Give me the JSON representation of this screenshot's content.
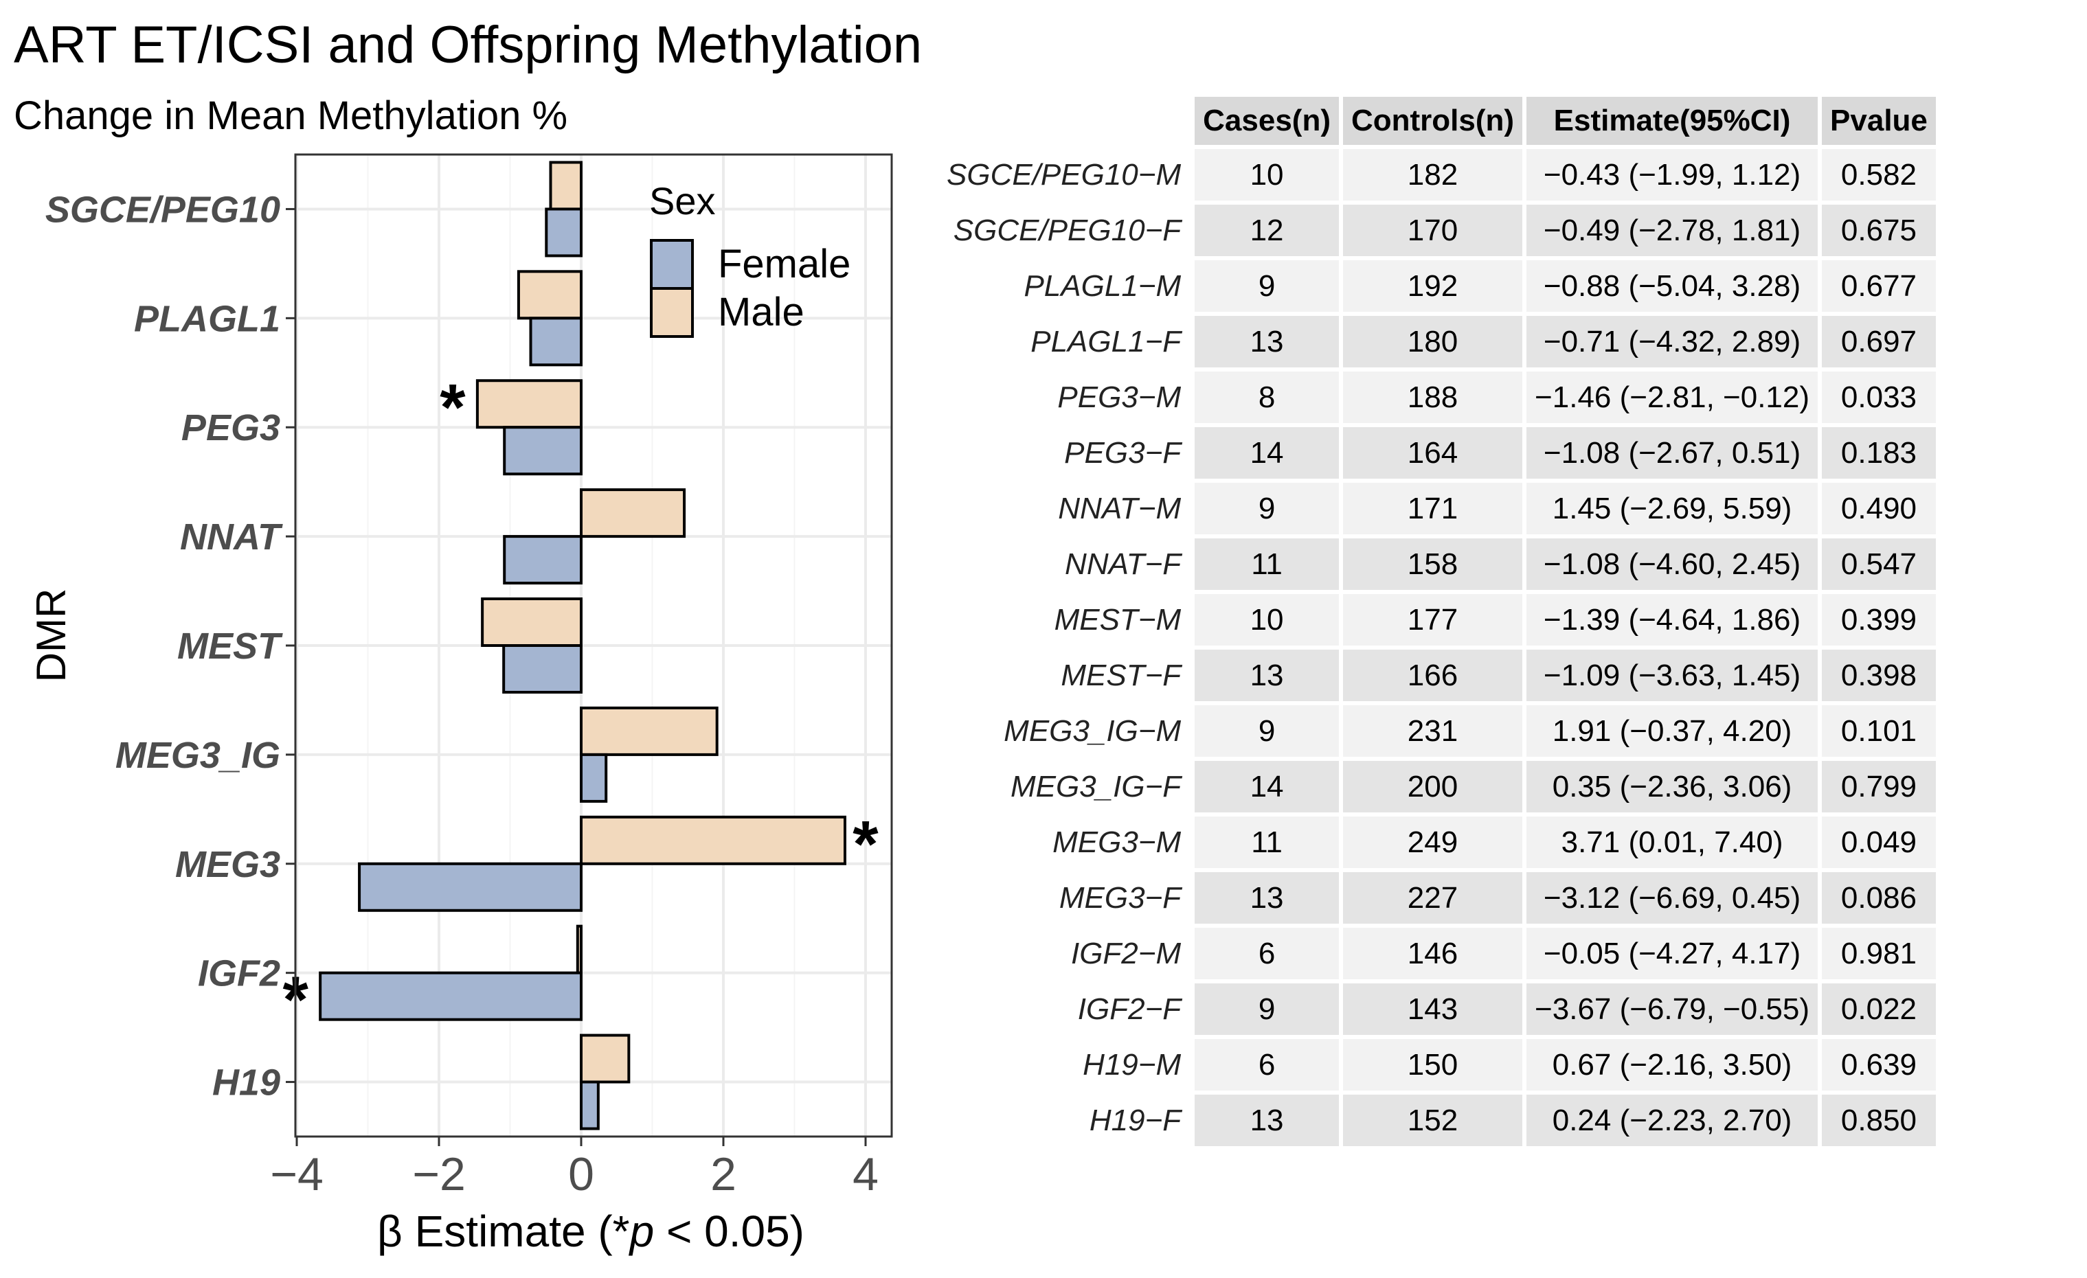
{
  "header": {
    "title": "ART ET/ICSI and Offspring Methylation",
    "subtitle": "Change in Mean Methylation %"
  },
  "chart_data": {
    "type": "bar",
    "orientation": "horizontal",
    "ylabel": "DMR",
    "xlabel_prefix": "β Estimate (*",
    "xlabel_p": "p",
    "xlabel_suffix": " < 0.05)",
    "xlim": [
      -4,
      4
    ],
    "xticks": [
      "−4",
      "−2",
      "0",
      "2",
      "4"
    ],
    "categories": [
      "SGCE/PEG10",
      "PLAGL1",
      "PEG3",
      "NNAT",
      "MEST",
      "MEG3_IG",
      "MEG3",
      "IGF2",
      "H19"
    ],
    "legend": {
      "title": "Sex",
      "position": "top-right"
    },
    "significance_marker": "*",
    "series": [
      {
        "name": "Male",
        "color": "#f2d9bd",
        "values": [
          -0.43,
          -0.88,
          -1.46,
          1.45,
          -1.39,
          1.91,
          3.71,
          -0.05,
          0.67
        ],
        "significant": [
          false,
          false,
          true,
          false,
          false,
          false,
          true,
          false,
          false
        ]
      },
      {
        "name": "Female",
        "color": "#a4b5d1",
        "values": [
          -0.49,
          -0.71,
          -1.08,
          -1.08,
          -1.09,
          0.35,
          -3.12,
          -3.67,
          0.24
        ],
        "significant": [
          false,
          false,
          false,
          false,
          false,
          false,
          false,
          true,
          false
        ]
      }
    ]
  },
  "table": {
    "columns": [
      "Cases(n)",
      "Controls(n)",
      "Estimate(95%CI)",
      "Pvalue"
    ],
    "rows": [
      {
        "label": "SGCE/PEG10−M",
        "cases": "10",
        "controls": "182",
        "estimate": "−0.43 (−1.99, 1.12)",
        "pvalue": "0.582"
      },
      {
        "label": "SGCE/PEG10−F",
        "cases": "12",
        "controls": "170",
        "estimate": "−0.49 (−2.78, 1.81)",
        "pvalue": "0.675"
      },
      {
        "label": "PLAGL1−M",
        "cases": "9",
        "controls": "192",
        "estimate": "−0.88 (−5.04, 3.28)",
        "pvalue": "0.677"
      },
      {
        "label": "PLAGL1−F",
        "cases": "13",
        "controls": "180",
        "estimate": "−0.71 (−4.32, 2.89)",
        "pvalue": "0.697"
      },
      {
        "label": "PEG3−M",
        "cases": "8",
        "controls": "188",
        "estimate": "−1.46 (−2.81, −0.12)",
        "pvalue": "0.033"
      },
      {
        "label": "PEG3−F",
        "cases": "14",
        "controls": "164",
        "estimate": "−1.08 (−2.67, 0.51)",
        "pvalue": "0.183"
      },
      {
        "label": "NNAT−M",
        "cases": "9",
        "controls": "171",
        "estimate": "1.45 (−2.69, 5.59)",
        "pvalue": "0.490"
      },
      {
        "label": "NNAT−F",
        "cases": "11",
        "controls": "158",
        "estimate": "−1.08 (−4.60, 2.45)",
        "pvalue": "0.547"
      },
      {
        "label": "MEST−M",
        "cases": "10",
        "controls": "177",
        "estimate": "−1.39 (−4.64, 1.86)",
        "pvalue": "0.399"
      },
      {
        "label": "MEST−F",
        "cases": "13",
        "controls": "166",
        "estimate": "−1.09 (−3.63, 1.45)",
        "pvalue": "0.398"
      },
      {
        "label": "MEG3_IG−M",
        "cases": "9",
        "controls": "231",
        "estimate": "1.91 (−0.37, 4.20)",
        "pvalue": "0.101"
      },
      {
        "label": "MEG3_IG−F",
        "cases": "14",
        "controls": "200",
        "estimate": "0.35 (−2.36, 3.06)",
        "pvalue": "0.799"
      },
      {
        "label": "MEG3−M",
        "cases": "11",
        "controls": "249",
        "estimate": "3.71 (0.01, 7.40)",
        "pvalue": "0.049"
      },
      {
        "label": "MEG3−F",
        "cases": "13",
        "controls": "227",
        "estimate": "−3.12 (−6.69, 0.45)",
        "pvalue": "0.086"
      },
      {
        "label": "IGF2−M",
        "cases": "6",
        "controls": "146",
        "estimate": "−0.05 (−4.27, 4.17)",
        "pvalue": "0.981"
      },
      {
        "label": "IGF2−F",
        "cases": "9",
        "controls": "143",
        "estimate": "−3.67 (−6.79, −0.55)",
        "pvalue": "0.022"
      },
      {
        "label": "H19−M",
        "cases": "6",
        "controls": "150",
        "estimate": "0.67 (−2.16, 3.50)",
        "pvalue": "0.639"
      },
      {
        "label": "H19−F",
        "cases": "13",
        "controls": "152",
        "estimate": "0.24 (−2.23, 2.70)",
        "pvalue": "0.850"
      }
    ]
  }
}
